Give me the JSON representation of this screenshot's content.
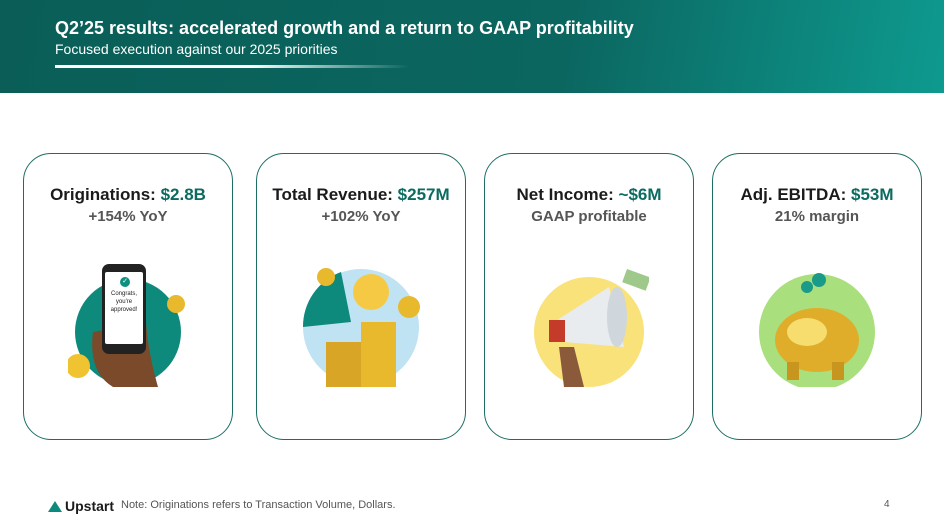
{
  "header": {
    "title": "Q2’25 results: accelerated growth and a return to GAAP profitability",
    "subtitle": "Focused execution against our 2025 priorities"
  },
  "cards": [
    {
      "label": "Originations: ",
      "value": "$2.8B",
      "sub": "+154% YoY",
      "illustration_text": "Congrats, you're approved!"
    },
    {
      "label": "Total Revenue: ",
      "value": "$257M",
      "sub": "+102% YoY"
    },
    {
      "label": "Net Income: ",
      "value": "~$6M",
      "sub": "GAAP profitable"
    },
    {
      "label": "Adj. EBITDA: ",
      "value": "$53M",
      "sub": "21% margin"
    }
  ],
  "footer": {
    "logo": "Upstart",
    "note": "Note: Originations refers to Transaction Volume, Dollars.",
    "page": "4"
  },
  "colors": {
    "accent": "#0b6b60",
    "header": "#0a5e57"
  }
}
